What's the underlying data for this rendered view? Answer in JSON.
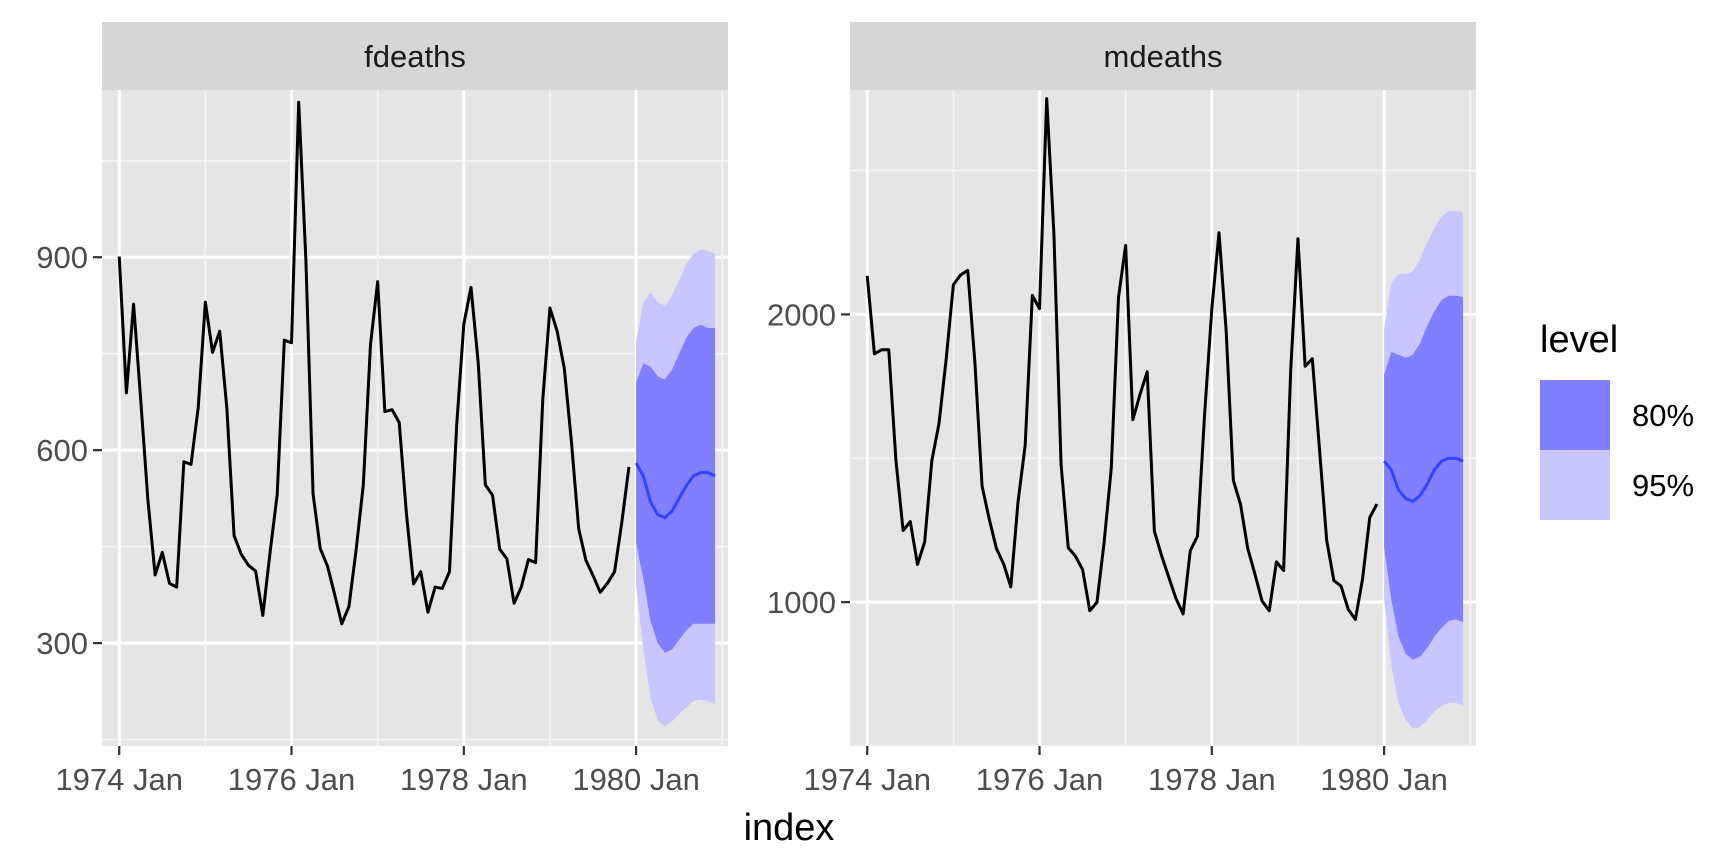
{
  "chart_data": {
    "type": "line",
    "xlabel": "index",
    "x_ticks": [
      "1974 Jan",
      "1976 Jan",
      "1978 Jan",
      "1980 Jan"
    ],
    "legend": {
      "title": "level",
      "placement": "right",
      "entries": [
        {
          "label": "80%",
          "color": "#7f7fff"
        },
        {
          "label": "95%",
          "color": "#c9c6ff"
        }
      ]
    },
    "colors": {
      "panel_bg": "#e5e5e5",
      "strip_bg": "#d6d6d6",
      "observed": "#000000",
      "forecast_mean": "#3344ff",
      "band80": "#7f7fff",
      "band95": "#c9c6ff"
    },
    "facets": [
      {
        "strip": "fdeaths",
        "ylim": [
          140,
          1160
        ],
        "y_ticks": [
          300,
          600,
          900
        ],
        "observed_start": "1974-01",
        "observed": [
          901,
          689,
          827,
          677,
          522,
          406,
          441,
          393,
          387,
          582,
          578,
          666,
          830,
          752,
          785,
          664,
          467,
          438,
          421,
          412,
          343,
          440,
          531,
          771,
          767,
          1141,
          896,
          532,
          447,
          420,
          376,
          330,
          357,
          445,
          546,
          764,
          862,
          660,
          663,
          643,
          502,
          392,
          411,
          348,
          387,
          385,
          411,
          638,
          796,
          853,
          737,
          546,
          530,
          446,
          431,
          362,
          387,
          430,
          425,
          679,
          821,
          785,
          727,
          612,
          478,
          429,
          405,
          379,
          393,
          411,
          487,
          574
        ],
        "forecast_start": "1980-01",
        "forecast_mean": [
          580,
          560,
          520,
          500,
          495,
          505,
          525,
          545,
          560,
          565,
          565,
          560
        ],
        "lower80": [
          455,
          400,
          335,
          300,
          285,
          290,
          305,
          320,
          330,
          330,
          330,
          330
        ],
        "upper80": [
          705,
          735,
          730,
          715,
          710,
          725,
          750,
          775,
          790,
          795,
          790,
          790
        ],
        "lower95": [
          390,
          290,
          215,
          180,
          170,
          178,
          190,
          200,
          210,
          212,
          210,
          205
        ],
        "upper95": [
          770,
          830,
          845,
          830,
          825,
          840,
          865,
          890,
          905,
          912,
          910,
          905
        ]
      },
      {
        "strip": "mdeaths",
        "ylim": [
          500,
          2780
        ],
        "y_ticks": [
          1000,
          2000
        ],
        "observed_start": "1974-01",
        "observed": [
          2134,
          1863,
          1877,
          1877,
          1492,
          1249,
          1280,
          1131,
          1209,
          1492,
          1621,
          1846,
          2103,
          2137,
          2153,
          1833,
          1403,
          1288,
          1186,
          1133,
          1053,
          1347,
          1545,
          2066,
          2020,
          2750,
          2283,
          1479,
          1189,
          1160,
          1113,
          970,
          999,
          1208,
          1467,
          2059,
          2240,
          1634,
          1722,
          1801,
          1246,
          1162,
          1087,
          1013,
          959,
          1179,
          1229,
          1655,
          2019,
          2284,
          1942,
          1423,
          1340,
          1187,
          1098,
          1004,
          970,
          1140,
          1110,
          1812,
          2263,
          1820,
          1846,
          1531,
          1215,
          1075,
          1056,
          975,
          940,
          1081,
          1294,
          1341
        ],
        "forecast_start": "1980-01",
        "forecast_mean": [
          1490,
          1460,
          1390,
          1360,
          1350,
          1370,
          1410,
          1460,
          1490,
          1500,
          1500,
          1490
        ],
        "lower80": [
          1190,
          1010,
          880,
          820,
          800,
          810,
          840,
          880,
          910,
          935,
          940,
          930
        ],
        "upper80": [
          1790,
          1870,
          1860,
          1850,
          1860,
          1900,
          1960,
          2010,
          2050,
          2065,
          2065,
          2060
        ],
        "lower95": [
          1010,
          780,
          650,
          590,
          560,
          565,
          590,
          620,
          640,
          650,
          650,
          640
        ],
        "upper95": [
          1950,
          2110,
          2140,
          2140,
          2150,
          2190,
          2250,
          2300,
          2340,
          2360,
          2360,
          2355
        ]
      }
    ]
  }
}
